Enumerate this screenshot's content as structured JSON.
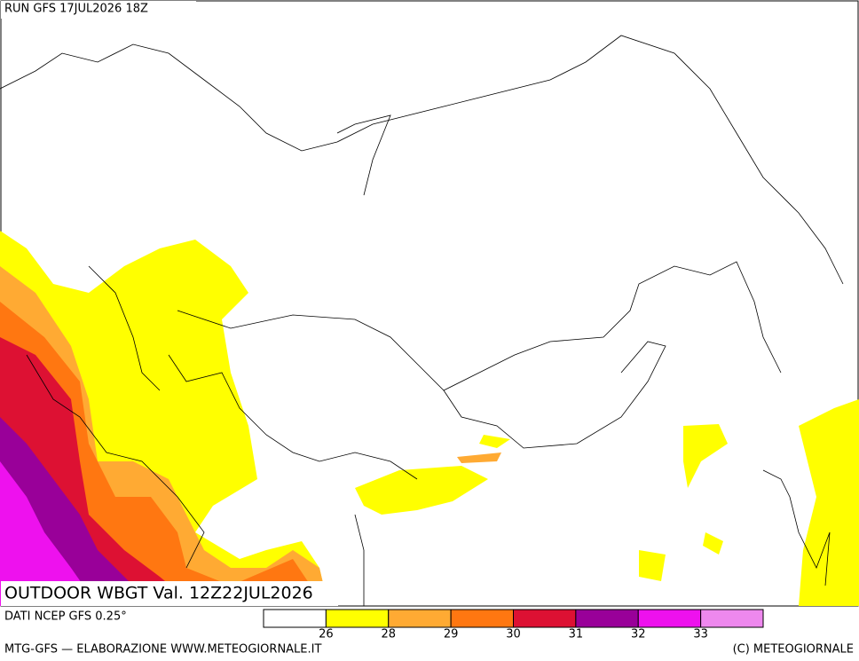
{
  "header": {
    "run": "RUN GFS 17JUL2026 18Z"
  },
  "map": {
    "title": "OUTDOOR WBGT Val. 12Z22JUL2026"
  },
  "legend": {
    "colors": [
      "#ffffff",
      "#ffff00",
      "#ffaa33",
      "#ff7711",
      "#dd1133",
      "#990099",
      "#ee11ee",
      "#ee88ee"
    ],
    "ticks": [
      26,
      28,
      29,
      30,
      31,
      32,
      33
    ]
  },
  "footer": {
    "source": "DATI NCEP GFS 0.25°",
    "credit": "MTG-GFS — ELABORAZIONE WWW.METEOGIORNALE.IT",
    "copyright": "(C) METEOGIORNALE"
  }
}
